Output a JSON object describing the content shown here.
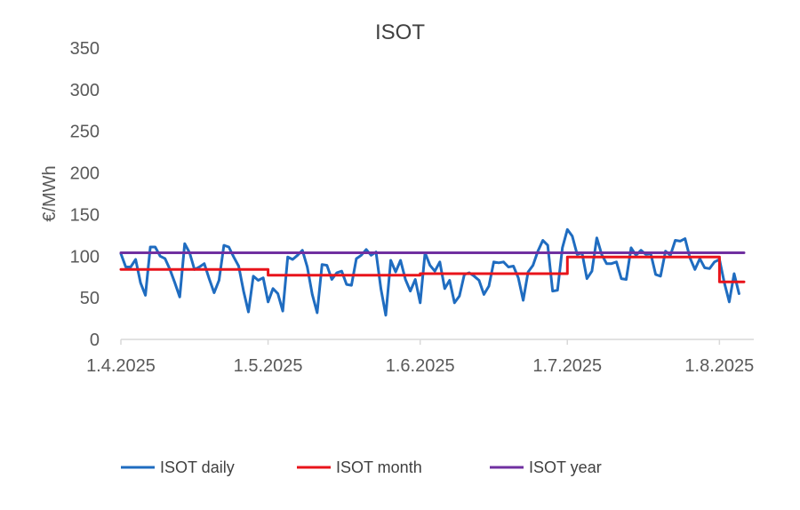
{
  "chart_data": {
    "type": "line",
    "title": "ISOT",
    "ylabel": "€/MWh",
    "xlabel": "",
    "ylim": [
      0,
      350
    ],
    "yticks": [
      0,
      50,
      100,
      150,
      200,
      250,
      300,
      350
    ],
    "xlim_days": [
      0,
      129
    ],
    "x_tick_labels": [
      "1.4.2025",
      "1.5.2025",
      "1.6.2025",
      "1.7.2025",
      "1.8.2025"
    ],
    "x_tick_days": [
      0,
      30,
      61,
      91,
      122
    ],
    "legend_position": "bottom",
    "series": [
      {
        "name": "ISOT daily",
        "color": "#1f6cc0",
        "values": [
          103,
          87,
          87,
          96,
          68,
          53,
          111,
          111,
          100,
          97,
          84,
          68,
          51,
          115,
          104,
          84,
          87,
          91,
          73,
          56,
          71,
          113,
          111,
          99,
          88,
          58,
          33,
          76,
          71,
          74,
          45,
          61,
          55,
          34,
          99,
          96,
          101,
          107,
          87,
          54,
          32,
          90,
          89,
          72,
          80,
          82,
          66,
          65,
          97,
          101,
          108,
          101,
          105,
          61,
          29,
          95,
          81,
          95,
          72,
          58,
          72,
          44,
          104,
          89,
          82,
          93,
          61,
          71,
          44,
          52,
          78,
          80,
          76,
          71,
          54,
          64,
          93,
          92,
          93,
          87,
          88,
          74,
          47,
          81,
          89,
          106,
          119,
          113,
          58,
          59,
          110,
          132,
          124,
          102,
          104,
          73,
          82,
          122,
          102,
          91,
          91,
          93,
          73,
          72,
          110,
          101,
          107,
          102,
          103,
          78,
          76,
          106,
          101,
          119,
          118,
          121,
          98,
          84,
          97,
          86,
          85,
          93,
          96,
          68,
          45,
          79,
          55
        ]
      },
      {
        "name": "ISOT month",
        "color": "#e8141b",
        "segments": [
          {
            "from": 0,
            "to": 30,
            "value": 84
          },
          {
            "from": 30,
            "to": 61,
            "value": 77
          },
          {
            "from": 61,
            "to": 91,
            "value": 79
          },
          {
            "from": 91,
            "to": 122,
            "value": 99
          },
          {
            "from": 122,
            "to": 127,
            "value": 69
          }
        ]
      },
      {
        "name": "ISOT year",
        "color": "#7030a0",
        "segments": [
          {
            "from": 0,
            "to": 127,
            "value": 104
          }
        ]
      }
    ]
  }
}
